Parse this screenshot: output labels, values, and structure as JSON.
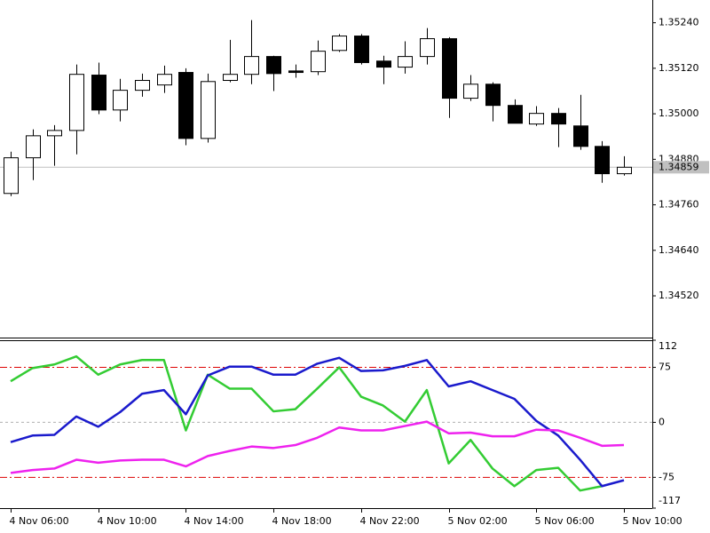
{
  "chart_data": [
    {
      "type": "candlestick",
      "categories": [
        "4 Nov 06:00",
        null,
        null,
        null,
        "4 Nov 10:00",
        null,
        null,
        null,
        "4 Nov 14:00",
        null,
        null,
        null,
        "4 Nov 18:00",
        null,
        null,
        null,
        "4 Nov 22:00",
        null,
        null,
        null,
        "5 Nov 02:00",
        null,
        null,
        null,
        "5 Nov 06:00",
        null,
        null,
        null,
        "5 Nov 10:00"
      ],
      "open": [
        1.3479,
        1.34884,
        1.34942,
        1.34956,
        1.35102,
        1.3501,
        1.35062,
        1.35076,
        1.35109,
        1.34935,
        1.35088,
        1.35104,
        1.35151,
        1.35113,
        1.35111,
        1.35167,
        1.35205,
        1.35139,
        1.35123,
        1.35151,
        1.35198,
        1.35041,
        1.35078,
        1.35022,
        1.34973,
        1.35001,
        1.34968,
        1.34914,
        1.34842
      ],
      "high": [
        1.349,
        1.34959,
        1.3497,
        1.3513,
        1.35135,
        1.35092,
        1.35106,
        1.35127,
        1.3512,
        1.35106,
        1.35195,
        1.35247,
        1.35153,
        1.3513,
        1.35193,
        1.3521,
        1.3521,
        1.35153,
        1.35191,
        1.35226,
        1.35202,
        1.35102,
        1.35083,
        1.35038,
        1.3502,
        1.35015,
        1.3505,
        1.34928,
        1.34888
      ],
      "low": [
        1.34783,
        1.34825,
        1.34863,
        1.34893,
        1.34999,
        1.3498,
        1.35045,
        1.35055,
        1.34917,
        1.34924,
        1.35083,
        1.35078,
        1.3506,
        1.35095,
        1.35102,
        1.35163,
        1.3513,
        1.35078,
        1.35106,
        1.3513,
        1.34989,
        1.35034,
        1.3498,
        1.34975,
        1.34968,
        1.34912,
        1.34905,
        1.34818,
        1.34837
      ],
      "close": [
        1.34884,
        1.34942,
        1.34956,
        1.35104,
        1.3501,
        1.35062,
        1.35088,
        1.35104,
        1.34935,
        1.35085,
        1.35104,
        1.35151,
        1.35106,
        1.35109,
        1.35165,
        1.35205,
        1.35135,
        1.35123,
        1.35151,
        1.35198,
        1.35041,
        1.35078,
        1.35022,
        1.34975,
        1.35001,
        1.34973,
        1.34914,
        1.34842,
        1.34859
      ],
      "up_color": "#ffffff",
      "down_color": "#000000",
      "ylim": [
        1.3441,
        1.353
      ],
      "yticks": [
        {
          "value": 1.3452,
          "label": "1.34520"
        },
        {
          "value": 1.3464,
          "label": "1.34640"
        },
        {
          "value": 1.3476,
          "label": "1.34760"
        },
        {
          "value": 1.3488,
          "label": "1.34880"
        },
        {
          "value": 1.35,
          "label": "1.35000"
        },
        {
          "value": 1.3512,
          "label": "1.35120"
        },
        {
          "value": 1.3524,
          "label": "1.35240"
        }
      ],
      "last_price": 1.34859
    },
    {
      "type": "line",
      "series": [
        {
          "color": "#33cc33",
          "values": [
            56,
            74,
            79,
            90,
            65,
            79,
            85,
            85,
            -11,
            65,
            46,
            46,
            15,
            18,
            46,
            75,
            35,
            23,
            1,
            44,
            -56,
            -24,
            -63,
            -87,
            -65,
            -62,
            -93,
            -87,
            null
          ]
        },
        {
          "color": "#1a1acc",
          "values": [
            -27,
            -18,
            -17,
            8,
            -6,
            14,
            39,
            44,
            11,
            64,
            76,
            76,
            65,
            65,
            80,
            88,
            70,
            71,
            77,
            85,
            49,
            56,
            44,
            32,
            2,
            -18,
            -51,
            -87,
            -79
          ]
        },
        {
          "color": "#ee22ee",
          "values": [
            -69,
            -65,
            -63,
            -51,
            -55,
            -52,
            -51,
            -51,
            -60,
            -46,
            -39,
            -33,
            -35,
            -31,
            -21,
            -7,
            -11,
            -11,
            -5,
            1,
            -15,
            -14,
            -19,
            -19,
            -10,
            -11,
            -21,
            -32,
            -31
          ]
        }
      ],
      "ylim": [
        -117,
        112
      ],
      "yticks": [
        112,
        75,
        0,
        -75,
        -117
      ],
      "level_lines": [
        {
          "value": 75,
          "color": "#dd0000"
        },
        {
          "value": 0,
          "color": "#b0b0b0"
        },
        {
          "value": -75,
          "color": "#dd0000"
        }
      ]
    }
  ]
}
